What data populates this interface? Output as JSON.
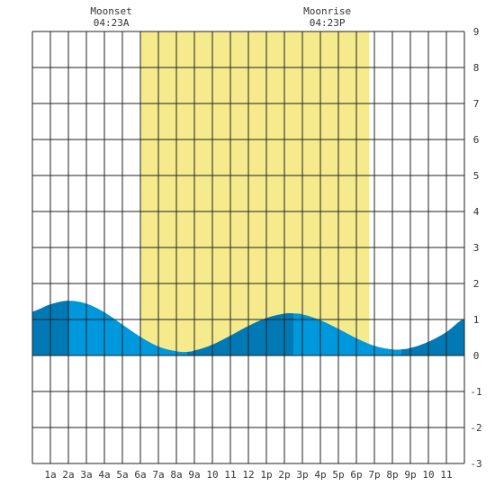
{
  "chart_data": {
    "type": "area",
    "title": "",
    "xlabel": "",
    "ylabel": "",
    "x_range": [
      0,
      24
    ],
    "ylim": [
      -3,
      9
    ],
    "grid": true,
    "x_tick_labels": [
      "1a",
      "2a",
      "3a",
      "4a",
      "5a",
      "6a",
      "7a",
      "8a",
      "9a",
      "10",
      "11",
      "12",
      "1p",
      "2p",
      "3p",
      "4p",
      "5p",
      "6p",
      "7p",
      "8p",
      "9p",
      "10",
      "11"
    ],
    "y_tick_labels": [
      "-3",
      "-2",
      "-1",
      "0",
      "1",
      "2",
      "3",
      "4",
      "5",
      "6",
      "7",
      "8",
      "9"
    ],
    "daylight_hours": [
      6.02,
      18.72
    ],
    "moon_events": [
      {
        "name": "Moonset",
        "time": "04:23A",
        "hour": 4.38
      },
      {
        "name": "Moonrise",
        "time": "04:23P",
        "hour": 16.38
      }
    ],
    "series": [
      {
        "x": [
          0,
          1,
          2,
          3,
          4,
          5,
          6,
          7,
          8,
          8.6,
          9,
          10,
          11,
          12,
          13,
          14,
          14.5,
          15,
          16,
          17,
          18,
          19,
          20,
          20.5,
          21,
          22,
          23,
          24
        ],
        "values": [
          1.22,
          1.42,
          1.52,
          1.44,
          1.2,
          0.86,
          0.52,
          0.25,
          0.12,
          0.1,
          0.14,
          0.3,
          0.55,
          0.82,
          1.04,
          1.16,
          1.17,
          1.14,
          0.98,
          0.74,
          0.48,
          0.27,
          0.17,
          0.17,
          0.21,
          0.38,
          0.65,
          1.02
        ]
      }
    ],
    "colors": {
      "daylight": "#f5ea8c",
      "tide_light": "#0098dd",
      "tide_dark": "#0079b5",
      "grid": "#222222"
    }
  }
}
